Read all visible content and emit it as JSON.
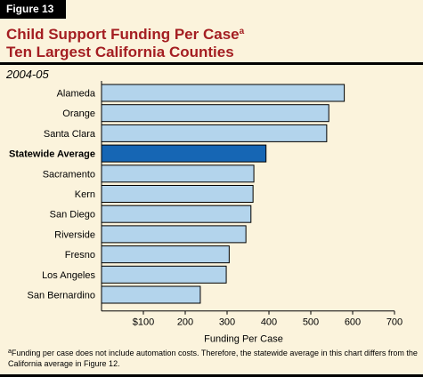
{
  "figure_label": "Figure 13",
  "title_line1": "Child Support Funding Per Case",
  "title_superscript": "a",
  "title_line2": "Ten Largest California Counties",
  "year": "2004-05",
  "footnote_marker": "a",
  "footnote_text": "Funding per case does not include automation costs. Therefore, the statewide average in this chart differs from the California average in Figure 12.",
  "colors": {
    "background": "#fbf3dc",
    "bar": "#b3d4ec",
    "highlight_bar": "#1666b4",
    "title": "#a41e22"
  },
  "chart_data": {
    "type": "bar",
    "orientation": "horizontal",
    "categories": [
      "Alameda",
      "Orange",
      "Santa Clara",
      "Statewide Average",
      "Sacramento",
      "Kern",
      "San Diego",
      "Riverside",
      "Fresno",
      "Los Angeles",
      "San Bernardino"
    ],
    "values": [
      580,
      543,
      538,
      393,
      364,
      362,
      357,
      345,
      305,
      298,
      236
    ],
    "highlight": "Statewide Average",
    "xlabel": "Funding Per Case",
    "xlim": [
      0,
      700
    ],
    "xticks": [
      100,
      200,
      300,
      400,
      500,
      600,
      700
    ],
    "xtick_labels": [
      "$100",
      "200",
      "300",
      "400",
      "500",
      "600",
      "700"
    ],
    "grid": false
  }
}
